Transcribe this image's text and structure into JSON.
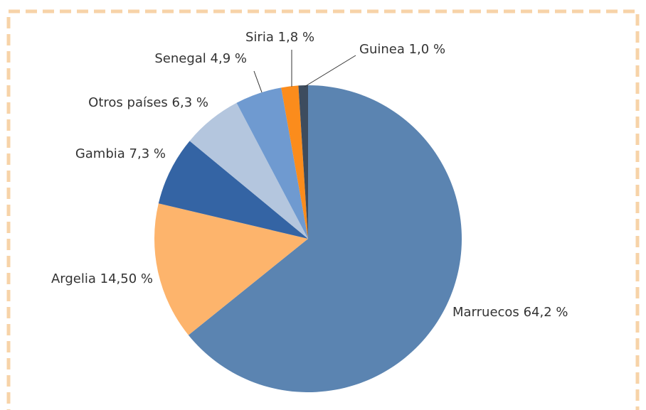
{
  "chart_data": {
    "type": "pie",
    "categories": [
      "Marruecos",
      "Argelia",
      "Gambia",
      "Otros países",
      "Senegal",
      "Siria",
      "Guinea"
    ],
    "values": [
      64.2,
      14.5,
      7.3,
      6.3,
      4.9,
      1.8,
      1.0
    ],
    "value_labels": [
      "64,2 %",
      "14,50 %",
      "7,3 %",
      "6,3 %",
      "4,9 %",
      "1,8 %",
      "1,0 %"
    ],
    "colors": [
      "#5b84b1",
      "#fdb46c",
      "#3464a4",
      "#b4c6de",
      "#6f9ad0",
      "#fb8c1c",
      "#3d4c5e"
    ]
  }
}
